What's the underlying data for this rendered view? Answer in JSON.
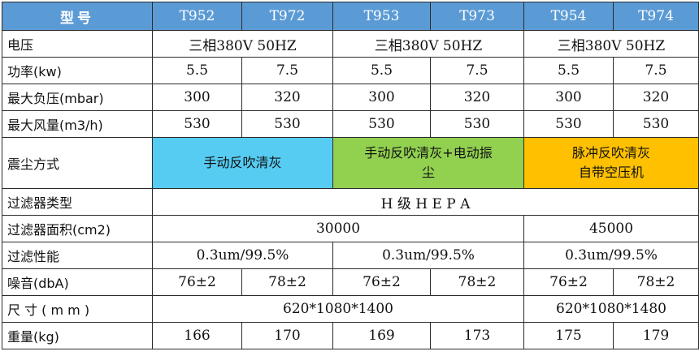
{
  "header": {
    "label": "型号",
    "models": [
      "T952",
      "T972",
      "T953",
      "T973",
      "T954",
      "T974"
    ]
  },
  "rows": {
    "voltage": {
      "label": "电压",
      "values": [
        "三相380V 50HZ",
        "三相380V 50HZ",
        "三相380V 50HZ"
      ]
    },
    "power": {
      "label": "功率(kw)",
      "values": [
        "5.5",
        "7.5",
        "5.5",
        "7.5",
        "5.5",
        "7.5"
      ]
    },
    "max_pressure": {
      "label": "最大负压(mbar)",
      "values": [
        "300",
        "320",
        "300",
        "320",
        "300",
        "320"
      ]
    },
    "max_airflow": {
      "label": "最大风量(m3/h)",
      "values": [
        "530",
        "530",
        "530",
        "530",
        "530",
        "530"
      ]
    },
    "dust_method": {
      "label": "震尘方式",
      "values": [
        {
          "lines": [
            "手动反吹清灰"
          ],
          "color": "#56ccf2"
        },
        {
          "lines": [
            "手动反吹清灰+电动振",
            "尘"
          ],
          "color": "#92d050"
        },
        {
          "lines": [
            "脉冲反吹清灰",
            "自带空压机"
          ],
          "color": "#ffc000"
        }
      ]
    },
    "filter_type": {
      "label": "过滤器类型",
      "value": "H 级 H E P A"
    },
    "filter_area": {
      "label": "过滤器面积(cm2)",
      "values": [
        "30000",
        "45000"
      ]
    },
    "filter_perf": {
      "label": "过滤性能",
      "values": [
        "0.3um/99.5%",
        "0.3um/99.5%",
        "0.3um/99.5%"
      ]
    },
    "noise": {
      "label": "噪音(dbA)",
      "values": [
        "76±2",
        "78±2",
        "76±2",
        "78±2",
        "76±2",
        "78±2"
      ]
    },
    "size": {
      "label": "尺 寸 ( m m )",
      "values": [
        "620*1080*1400",
        "620*1080*1480"
      ]
    },
    "weight": {
      "label": "重量(kg)",
      "values": [
        "166",
        "170",
        "169",
        "173",
        "175",
        "179"
      ]
    }
  }
}
